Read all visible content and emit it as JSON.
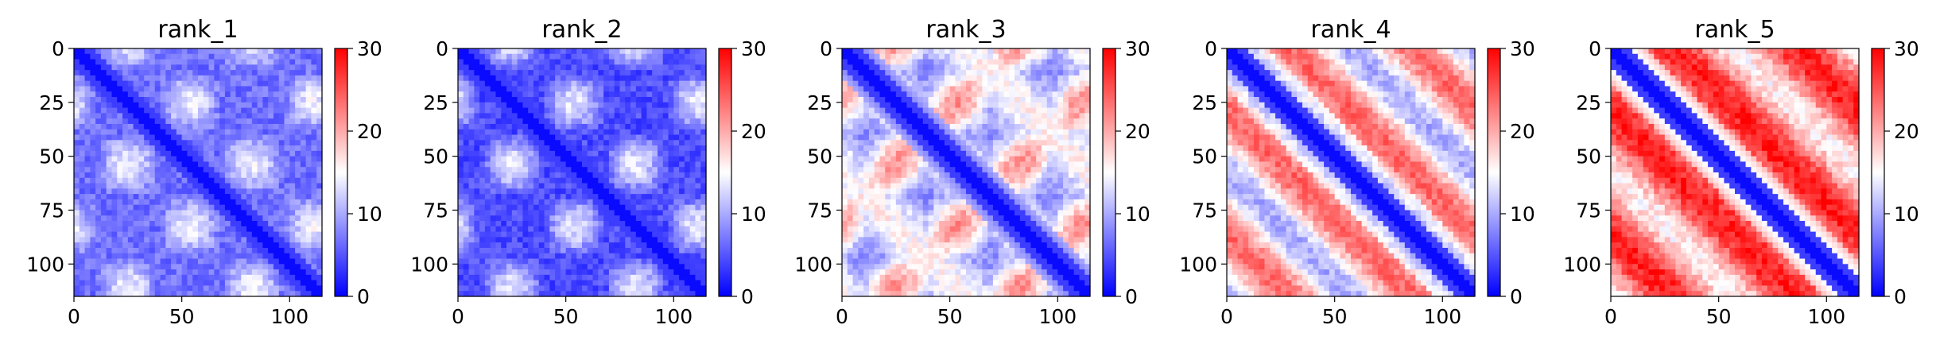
{
  "chart_data": [
    {
      "type": "heatmap",
      "title": "rank_1",
      "xlim": [
        0,
        115
      ],
      "ylim": [
        115,
        0
      ],
      "xticks": [
        0,
        50,
        100
      ],
      "yticks": [
        0,
        25,
        50,
        75,
        100
      ],
      "colorbar": {
        "min": 0,
        "max": 30,
        "ticks": [
          0,
          10,
          20,
          30
        ],
        "colormap": "bwr"
      },
      "pattern": {
        "diagonal_value": 1,
        "background_level": 0.22,
        "stripe_level": 0.45,
        "block_period": 23,
        "style": "periodic-low"
      }
    },
    {
      "type": "heatmap",
      "title": "rank_2",
      "xlim": [
        0,
        115
      ],
      "ylim": [
        115,
        0
      ],
      "xticks": [
        0,
        50,
        100
      ],
      "yticks": [
        0,
        25,
        50,
        75,
        100
      ],
      "colorbar": {
        "min": 0,
        "max": 30,
        "ticks": [
          0,
          10,
          20,
          30
        ],
        "colormap": "bwr"
      },
      "pattern": {
        "diagonal_value": 1,
        "background_level": 0.15,
        "stripe_level": 0.55,
        "block_period": 23,
        "style": "periodic-spots"
      }
    },
    {
      "type": "heatmap",
      "title": "rank_3",
      "xlim": [
        0,
        115
      ],
      "ylim": [
        115,
        0
      ],
      "xticks": [
        0,
        50,
        100
      ],
      "yticks": [
        0,
        25,
        50,
        75,
        100
      ],
      "colorbar": {
        "min": 0,
        "max": 30,
        "ticks": [
          0,
          10,
          20,
          30
        ],
        "colormap": "bwr"
      },
      "pattern": {
        "diagonal_value": 1,
        "background_level": 0.4,
        "stripe_level": 0.8,
        "block_period": 23,
        "style": "periodic-mixed"
      }
    },
    {
      "type": "heatmap",
      "title": "rank_4",
      "xlim": [
        0,
        115
      ],
      "ylim": [
        115,
        0
      ],
      "xticks": [
        0,
        50,
        100
      ],
      "yticks": [
        0,
        25,
        50,
        75,
        100
      ],
      "colorbar": {
        "min": 0,
        "max": 30,
        "ticks": [
          0,
          10,
          20,
          30
        ],
        "colormap": "bwr"
      },
      "pattern": {
        "diagonal_value": 1,
        "background_level": 0.8,
        "stripe_level": 0.3,
        "block_period": 23,
        "style": "parallel-diagonals"
      }
    },
    {
      "type": "heatmap",
      "title": "rank_5",
      "xlim": [
        0,
        115
      ],
      "ylim": [
        115,
        0
      ],
      "xticks": [
        0,
        50,
        100
      ],
      "yticks": [
        0,
        25,
        50,
        75,
        100
      ],
      "colorbar": {
        "min": 0,
        "max": 30,
        "ticks": [
          0,
          10,
          20,
          30
        ],
        "colormap": "bwr"
      },
      "pattern": {
        "diagonal_value": 1,
        "background_level": 0.95,
        "stripe_level": 0.6,
        "block_period": 23,
        "style": "mostly-high"
      }
    }
  ]
}
